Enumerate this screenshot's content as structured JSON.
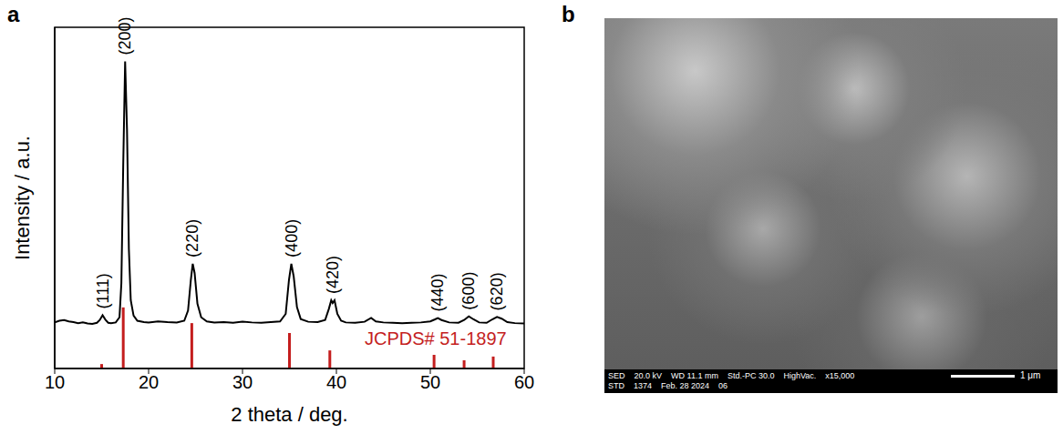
{
  "chart_data": {
    "type": "line",
    "panel_label": "a",
    "xlabel": "2 theta / deg.",
    "ylabel": "Intensity / a.u.",
    "xlim": [
      10,
      60
    ],
    "xticks": [
      10,
      20,
      30,
      40,
      50,
      60
    ],
    "ylim": [
      0,
      100
    ],
    "tick_labels": "x",
    "color": "#000000",
    "x": [
      10,
      10.5,
      11,
      11.5,
      12,
      12.5,
      13,
      13.5,
      14,
      14.5,
      14.8,
      15.1,
      15.4,
      15.7,
      16,
      16.5,
      16.9,
      17.1,
      17.3,
      17.5,
      17.7,
      17.9,
      18.1,
      18.4,
      18.8,
      19.5,
      20,
      21,
      22,
      23,
      23.8,
      24.2,
      24.5,
      24.7,
      24.9,
      25.2,
      25.6,
      26.2,
      27,
      28,
      29,
      30,
      31,
      32,
      33,
      34,
      34.6,
      34.95,
      35.2,
      35.45,
      35.8,
      36.2,
      37,
      38,
      38.8,
      39.2,
      39.45,
      39.6,
      39.8,
      40.1,
      40.5,
      41,
      42,
      43,
      43.7,
      44.2,
      45,
      46,
      47,
      48,
      49,
      50,
      50.5,
      50.8,
      51.2,
      52,
      53,
      53.6,
      54.1,
      54.6,
      55.2,
      56,
      56.6,
      57.1,
      57.6,
      58.2,
      59,
      60
    ],
    "values": [
      13.5,
      14,
      14.2,
      13.8,
      13.6,
      13.3,
      13.5,
      13.2,
      13.1,
      13.4,
      14.2,
      15.6,
      14.3,
      13.4,
      13.3,
      13.5,
      15,
      25,
      60,
      90,
      70,
      35,
      20,
      15.5,
      14,
      13.6,
      13.5,
      13.8,
      13.6,
      13.5,
      14,
      17,
      26,
      30.7,
      28,
      19,
      15,
      13.8,
      13.5,
      13.6,
      13.4,
      13.7,
      13.5,
      13.4,
      13.6,
      13.8,
      16,
      26,
      30.7,
      27,
      18,
      14.5,
      13.7,
      13.6,
      14.2,
      17.5,
      20,
      19.2,
      20,
      16,
      14,
      13.5,
      13.4,
      13.7,
      14.8,
      13.8,
      13.5,
      13.4,
      13.3,
      13.4,
      13.5,
      13.8,
      14.4,
      14.8,
      14.2,
      13.5,
      13.4,
      14.2,
      15.3,
      14.4,
      13.5,
      13.4,
      14.4,
      15.1,
      14.6,
      13.6,
      13.3,
      13.2
    ],
    "reference": {
      "name": "JCPDS# 51-1897",
      "color": "#c41e1e",
      "x": [
        15.0,
        17.3,
        24.6,
        35.0,
        39.3,
        50.4,
        53.6,
        56.7
      ],
      "values": [
        1.3,
        17.9,
        13.3,
        10.4,
        5.3,
        4.0,
        2.4,
        3.5
      ]
    },
    "annotations": [
      {
        "text": "(111)",
        "x": 15.1,
        "y": 15.6
      },
      {
        "text": "(200)",
        "x": 17.5,
        "y": 90
      },
      {
        "text": "(220)",
        "x": 24.7,
        "y": 30.7
      },
      {
        "text": "(400)",
        "x": 35.2,
        "y": 30.7
      },
      {
        "text": "(420)",
        "x": 39.6,
        "y": 20
      },
      {
        "text": "(440)",
        "x": 50.8,
        "y": 14.8
      },
      {
        "text": "(600)",
        "x": 54.1,
        "y": 15.3
      },
      {
        "text": "(620)",
        "x": 57.1,
        "y": 15.1
      }
    ]
  },
  "image_panel": {
    "panel_label": "b",
    "info_bar": {
      "row1": [
        "SED",
        "20.0 kV",
        "WD 11.1 mm",
        "Std.-PC 30.0",
        "HighVac.",
        "x15,000"
      ],
      "row2": [
        "STD",
        "1374",
        "Feb. 28 2024",
        "06"
      ]
    },
    "scale_bar": "1 μm"
  }
}
